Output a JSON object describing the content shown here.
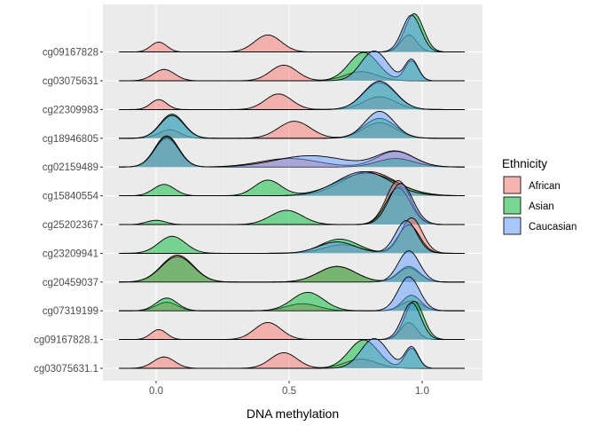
{
  "chart_data": {
    "type": "ridgeline",
    "xlabel": "DNA methylation",
    "ylabel": "",
    "xlim": [
      -0.2,
      1.2
    ],
    "x_ticks": [
      0.0,
      0.5,
      1.0
    ],
    "x_tick_labels": [
      "0.0",
      "0.5",
      "1.0"
    ],
    "x_grid_minor": [
      -0.25,
      0.25,
      0.75
    ],
    "grid": true,
    "legend": {
      "title": "Ethnicity",
      "position": "right",
      "entries": [
        {
          "name": "African",
          "color": "#F8766D"
        },
        {
          "name": "Asian",
          "color": "#00BA38"
        },
        {
          "name": "Caucasian",
          "color": "#619CFF"
        }
      ]
    },
    "rows": [
      {
        "label": "cg03075631.1",
        "series": {
          "African": [
            {
              "mu": 0.03,
              "sd": 0.04,
              "h": 0.4
            },
            {
              "mu": 0.48,
              "sd": 0.05,
              "h": 0.55
            },
            {
              "mu": 0.77,
              "sd": 0.06,
              "h": 0.32
            }
          ],
          "Asian": [
            {
              "mu": 0.78,
              "sd": 0.055,
              "h": 1.0
            },
            {
              "mu": 0.96,
              "sd": 0.025,
              "h": 0.7
            }
          ],
          "Caucasian": [
            {
              "mu": 0.82,
              "sd": 0.05,
              "h": 1.05
            },
            {
              "mu": 0.96,
              "sd": 0.025,
              "h": 0.75
            }
          ]
        }
      },
      {
        "label": "cg09167828.1",
        "series": {
          "African": [
            {
              "mu": 0.01,
              "sd": 0.03,
              "h": 0.35
            },
            {
              "mu": 0.42,
              "sd": 0.05,
              "h": 0.6
            },
            {
              "mu": 0.95,
              "sd": 0.03,
              "h": 0.6
            }
          ],
          "Asian": [
            {
              "mu": 0.97,
              "sd": 0.035,
              "h": 1.35
            }
          ],
          "Caucasian": [
            {
              "mu": 0.96,
              "sd": 0.035,
              "h": 1.3
            }
          ]
        }
      },
      {
        "label": "cg07319199",
        "series": {
          "African": [
            {
              "mu": 0.04,
              "sd": 0.04,
              "h": 0.3
            },
            {
              "mu": 0.55,
              "sd": 0.06,
              "h": 0.25
            },
            {
              "mu": 0.96,
              "sd": 0.04,
              "h": 0.35
            }
          ],
          "Asian": [
            {
              "mu": 0.04,
              "sd": 0.04,
              "h": 0.45
            },
            {
              "mu": 0.57,
              "sd": 0.06,
              "h": 0.65
            },
            {
              "mu": 0.96,
              "sd": 0.035,
              "h": 0.55
            }
          ],
          "Caucasian": [
            {
              "mu": 0.95,
              "sd": 0.04,
              "h": 1.2
            }
          ]
        }
      },
      {
        "label": "cg20459037",
        "series": {
          "African": [
            {
              "mu": 0.08,
              "sd": 0.06,
              "h": 0.95
            },
            {
              "mu": 0.68,
              "sd": 0.07,
              "h": 0.55
            },
            {
              "mu": 0.95,
              "sd": 0.04,
              "h": 0.5
            }
          ],
          "Asian": [
            {
              "mu": 0.08,
              "sd": 0.06,
              "h": 0.9
            },
            {
              "mu": 0.68,
              "sd": 0.07,
              "h": 0.55
            },
            {
              "mu": 0.95,
              "sd": 0.04,
              "h": 0.55
            }
          ],
          "Caucasian": [
            {
              "mu": 0.95,
              "sd": 0.04,
              "h": 1.1
            }
          ]
        }
      },
      {
        "label": "cg23209941",
        "series": {
          "African": [
            {
              "mu": 0.7,
              "sd": 0.07,
              "h": 0.3
            },
            {
              "mu": 0.96,
              "sd": 0.04,
              "h": 1.25
            }
          ],
          "Asian": [
            {
              "mu": 0.06,
              "sd": 0.05,
              "h": 0.6
            },
            {
              "mu": 0.69,
              "sd": 0.07,
              "h": 0.5
            },
            {
              "mu": 0.95,
              "sd": 0.04,
              "h": 1.0
            }
          ],
          "Caucasian": [
            {
              "mu": 0.68,
              "sd": 0.07,
              "h": 0.4
            },
            {
              "mu": 0.94,
              "sd": 0.04,
              "h": 1.15
            }
          ]
        }
      },
      {
        "label": "cg25202367",
        "series": {
          "African": [
            {
              "mu": 0.91,
              "sd": 0.045,
              "h": 1.55
            }
          ],
          "Asian": [
            {
              "mu": 0.0,
              "sd": 0.035,
              "h": 0.15
            },
            {
              "mu": 0.49,
              "sd": 0.06,
              "h": 0.5
            },
            {
              "mu": 0.91,
              "sd": 0.045,
              "h": 1.3
            }
          ],
          "Caucasian": [
            {
              "mu": 0.92,
              "sd": 0.045,
              "h": 1.45
            }
          ]
        }
      },
      {
        "label": "cg15840554",
        "series": {
          "African": [
            {
              "mu": 0.8,
              "sd": 0.1,
              "h": 0.85
            }
          ],
          "Asian": [
            {
              "mu": 0.03,
              "sd": 0.04,
              "h": 0.4
            },
            {
              "mu": 0.42,
              "sd": 0.05,
              "h": 0.55
            },
            {
              "mu": 0.79,
              "sd": 0.11,
              "h": 0.8
            }
          ],
          "Caucasian": [
            {
              "mu": 0.78,
              "sd": 0.1,
              "h": 0.85
            }
          ]
        }
      },
      {
        "label": "cg02159489",
        "series": {
          "African": [
            {
              "mu": 0.04,
              "sd": 0.045,
              "h": 1.0
            },
            {
              "mu": 0.5,
              "sd": 0.11,
              "h": 0.3
            },
            {
              "mu": 0.9,
              "sd": 0.07,
              "h": 0.55
            }
          ],
          "Asian": [
            {
              "mu": 0.04,
              "sd": 0.045,
              "h": 1.1
            },
            {
              "mu": 0.9,
              "sd": 0.07,
              "h": 0.3
            }
          ],
          "Caucasian": [
            {
              "mu": 0.04,
              "sd": 0.045,
              "h": 1.05
            },
            {
              "mu": 0.58,
              "sd": 0.13,
              "h": 0.4
            },
            {
              "mu": 0.9,
              "sd": 0.07,
              "h": 0.55
            }
          ]
        }
      },
      {
        "label": "cg18946805",
        "series": {
          "African": [
            {
              "mu": 0.05,
              "sd": 0.04,
              "h": 0.3
            },
            {
              "mu": 0.52,
              "sd": 0.06,
              "h": 0.6
            },
            {
              "mu": 0.84,
              "sd": 0.06,
              "h": 0.55
            }
          ],
          "Asian": [
            {
              "mu": 0.06,
              "sd": 0.045,
              "h": 0.85
            },
            {
              "mu": 0.84,
              "sd": 0.06,
              "h": 0.7
            }
          ],
          "Caucasian": [
            {
              "mu": 0.06,
              "sd": 0.045,
              "h": 0.8
            },
            {
              "mu": 0.84,
              "sd": 0.055,
              "h": 0.95
            }
          ]
        }
      },
      {
        "label": "cg22309983",
        "series": {
          "African": [
            {
              "mu": 0.01,
              "sd": 0.03,
              "h": 0.35
            },
            {
              "mu": 0.46,
              "sd": 0.05,
              "h": 0.55
            },
            {
              "mu": 0.84,
              "sd": 0.06,
              "h": 0.45
            }
          ],
          "Asian": [
            {
              "mu": 0.84,
              "sd": 0.06,
              "h": 0.95
            }
          ],
          "Caucasian": [
            {
              "mu": 0.84,
              "sd": 0.06,
              "h": 1.0
            }
          ]
        }
      },
      {
        "label": "cg03075631",
        "series": {
          "African": [
            {
              "mu": 0.03,
              "sd": 0.04,
              "h": 0.4
            },
            {
              "mu": 0.48,
              "sd": 0.05,
              "h": 0.55
            },
            {
              "mu": 0.77,
              "sd": 0.06,
              "h": 0.32
            }
          ],
          "Asian": [
            {
              "mu": 0.78,
              "sd": 0.055,
              "h": 1.0
            },
            {
              "mu": 0.96,
              "sd": 0.025,
              "h": 0.7
            }
          ],
          "Caucasian": [
            {
              "mu": 0.82,
              "sd": 0.05,
              "h": 1.05
            },
            {
              "mu": 0.96,
              "sd": 0.025,
              "h": 0.75
            }
          ]
        }
      },
      {
        "label": "cg09167828",
        "series": {
          "African": [
            {
              "mu": 0.01,
              "sd": 0.03,
              "h": 0.35
            },
            {
              "mu": 0.42,
              "sd": 0.05,
              "h": 0.6
            },
            {
              "mu": 0.95,
              "sd": 0.03,
              "h": 0.6
            }
          ],
          "Asian": [
            {
              "mu": 0.97,
              "sd": 0.035,
              "h": 1.35
            }
          ],
          "Caucasian": [
            {
              "mu": 0.96,
              "sd": 0.035,
              "h": 1.3
            }
          ]
        }
      }
    ]
  }
}
